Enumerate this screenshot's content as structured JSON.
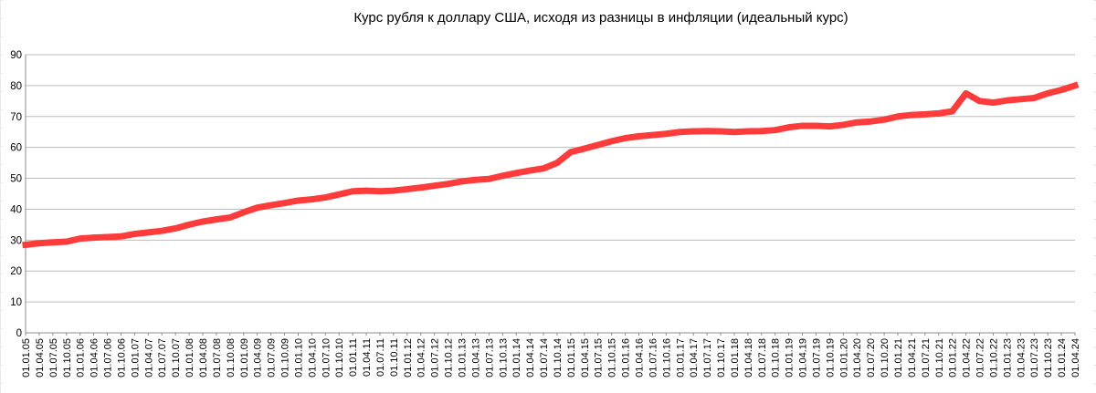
{
  "chart_data": {
    "type": "line",
    "title": "Курс рубля к доллару США, исходя из разницы в инфляции (идеальный курс)",
    "xlabel": "",
    "ylabel": "",
    "ylim": [
      0,
      90
    ],
    "yticks": [
      0,
      10,
      20,
      30,
      40,
      50,
      60,
      70,
      80,
      90
    ],
    "grid": true,
    "legend": "none",
    "line_color": "#ff3b3b",
    "categories": [
      "01.01.05",
      "01.04.05",
      "01.07.05",
      "01.10.05",
      "01.01.06",
      "01.04.06",
      "01.07.06",
      "01.10.06",
      "01.01.07",
      "01.04.07",
      "01.07.07",
      "01.10.07",
      "01.01.08",
      "01.04.08",
      "01.07.08",
      "01.10.08",
      "01.01.09",
      "01.04.09",
      "01.07.09",
      "01.10.09",
      "01.01.10",
      "01.04.10",
      "01.07.10",
      "01.10.10",
      "01.01.11",
      "01.04.11",
      "01.07.11",
      "01.10.11",
      "01.01.12",
      "01.04.12",
      "01.07.12",
      "01.10.12",
      "01.01.13",
      "01.04.13",
      "01.07.13",
      "01.10.13",
      "01.01.14",
      "01.04.14",
      "01.07.14",
      "01.10.14",
      "01.01.15",
      "01.04.15",
      "01.07.15",
      "01.10.15",
      "01.01.16",
      "01.04.16",
      "01.07.16",
      "01.10.16",
      "01.01.17",
      "01.04.17",
      "01.07.17",
      "01.10.17",
      "01.01.18",
      "01.04.18",
      "01.07.18",
      "01.10.18",
      "01.01.19",
      "01.04.19",
      "01.07.19",
      "01.10.19",
      "01.01.20",
      "01.04.20",
      "01.07.20",
      "01.10.20",
      "01.01.21",
      "01.04.21",
      "01.07.21",
      "01.10.21",
      "01.01.22",
      "01.04.22",
      "01.07.22",
      "01.10.22",
      "01.01.23",
      "01.04.23",
      "01.07.23",
      "01.10.23",
      "01.01.24",
      "01.04.24"
    ],
    "series": [
      {
        "values": [
          28.5,
          29.0,
          29.3,
          29.5,
          30.5,
          30.8,
          31.0,
          31.2,
          32.0,
          32.5,
          33.0,
          33.8,
          35.0,
          36.0,
          36.7,
          37.3,
          39.0,
          40.5,
          41.3,
          42.0,
          42.8,
          43.2,
          43.8,
          44.8,
          45.8,
          46.0,
          45.8,
          46.0,
          46.5,
          47.0,
          47.6,
          48.2,
          49.0,
          49.5,
          49.8,
          50.8,
          51.7,
          52.5,
          53.2,
          55.0,
          58.5,
          59.6,
          60.8,
          62.0,
          63.0,
          63.6,
          64.0,
          64.4,
          65.0,
          65.2,
          65.3,
          65.2,
          65.0,
          65.2,
          65.3,
          65.6,
          66.5,
          67.0,
          67.0,
          66.8,
          67.3,
          68.1,
          68.4,
          69.0,
          70.0,
          70.5,
          70.7,
          71.0,
          71.7,
          77.5,
          75.0,
          74.5,
          75.2,
          75.6,
          76.0,
          77.5,
          78.6,
          80.0
        ]
      }
    ]
  }
}
